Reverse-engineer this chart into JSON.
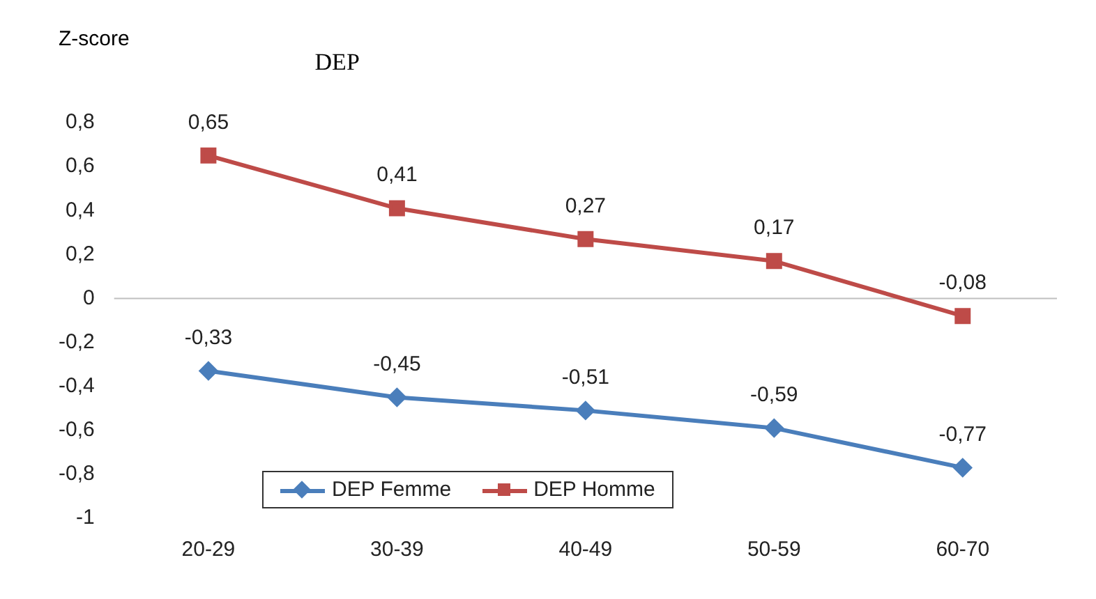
{
  "chart_data": {
    "type": "line",
    "title": "DEP",
    "ylabel": "Z-score",
    "categories": [
      "20-29",
      "30-39",
      "40-49",
      "50-59",
      "60-70"
    ],
    "series": [
      {
        "name": "DEP Femme",
        "color": "#4a7ebb",
        "marker": "diamond",
        "values": [
          -0.33,
          -0.45,
          -0.51,
          -0.59,
          -0.77
        ],
        "value_labels": [
          "-0,33",
          "-0,45",
          "-0,51",
          "-0,59",
          "-0,77"
        ]
      },
      {
        "name": "DEP Homme",
        "color": "#be4b48",
        "marker": "square",
        "values": [
          0.65,
          0.41,
          0.27,
          0.17,
          -0.08
        ],
        "value_labels": [
          "0,65",
          "0,41",
          "0,27",
          "0,17",
          "-0,08"
        ]
      }
    ],
    "ylim": [
      -1,
      0.8
    ],
    "yticks": [
      {
        "value": -1,
        "label": "-1"
      },
      {
        "value": -0.8,
        "label": "-0,8"
      },
      {
        "value": -0.6,
        "label": "-0,6"
      },
      {
        "value": -0.4,
        "label": "-0,4"
      },
      {
        "value": -0.2,
        "label": "-0,2"
      },
      {
        "value": 0,
        "label": "0"
      },
      {
        "value": 0.2,
        "label": "0,2"
      },
      {
        "value": 0.4,
        "label": "0,4"
      },
      {
        "value": 0.6,
        "label": "0,6"
      },
      {
        "value": 0.8,
        "label": "0,8"
      }
    ],
    "ref_lines": [
      {
        "axis": "y",
        "value": 0,
        "color": "#bfbfbf"
      }
    ],
    "grid": false,
    "legend": "bottom left",
    "line_style": "solid"
  }
}
